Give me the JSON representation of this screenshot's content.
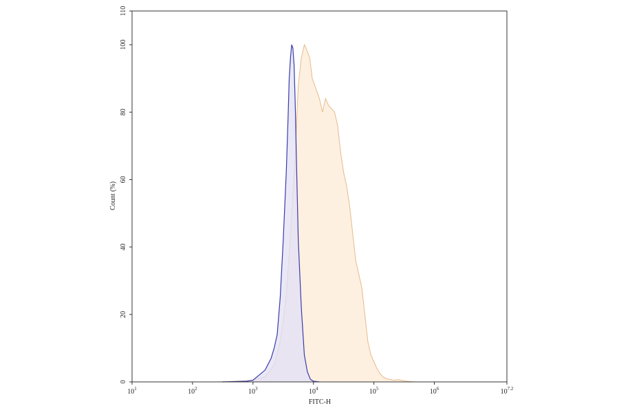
{
  "chart_data": {
    "type": "area",
    "xlabel": "FITC-H",
    "ylabel": "Count (%)",
    "xscale": "log10",
    "xlim_log10": [
      1,
      7.2
    ],
    "ylim": [
      0,
      110
    ],
    "grid": false,
    "x_ticks": [
      {
        "base": "10",
        "exp": "1",
        "value": 1
      },
      {
        "base": "10",
        "exp": "2",
        "value": 2
      },
      {
        "base": "10",
        "exp": "3",
        "value": 3
      },
      {
        "base": "10",
        "exp": "4",
        "value": 4
      },
      {
        "base": "10",
        "exp": "5",
        "value": 5
      },
      {
        "base": "10",
        "exp": "6",
        "value": 6
      },
      {
        "base": "10",
        "exp": "7.2",
        "value": 7.2
      }
    ],
    "y_ticks": [
      {
        "label": "0",
        "value": 0
      },
      {
        "label": "20",
        "value": 20
      },
      {
        "label": "40",
        "value": 40
      },
      {
        "label": "60",
        "value": 60
      },
      {
        "label": "80",
        "value": 80
      },
      {
        "label": "100",
        "value": 100
      },
      {
        "label": "110",
        "value": 110
      }
    ],
    "series": [
      {
        "color": "#e8b98a",
        "fill": "#fdf0e1",
        "x_log10": [
          2.4,
          2.9,
          3.0,
          3.2,
          3.35,
          3.45,
          3.5,
          3.55,
          3.6,
          3.65,
          3.7,
          3.75,
          3.8,
          3.85,
          3.9,
          3.94,
          3.98,
          4.02,
          4.06,
          4.1,
          4.15,
          4.2,
          4.25,
          4.3,
          4.35,
          4.4,
          4.45,
          4.5,
          4.55,
          4.6,
          4.65,
          4.7,
          4.75,
          4.8,
          4.85,
          4.9,
          4.95,
          5.0,
          5.05,
          5.1,
          5.15,
          5.2,
          5.25,
          5.3,
          5.35,
          5.4,
          5.45,
          5.5,
          5.55,
          5.6,
          5.7,
          5.8
        ],
        "y": [
          0,
          0.3,
          0.5,
          1.5,
          5,
          12,
          18,
          26,
          38,
          52,
          68,
          88,
          96,
          100,
          98,
          96,
          90,
          88,
          86,
          84,
          80,
          84,
          82,
          81,
          80,
          76,
          68,
          62,
          58,
          52,
          44,
          36,
          32,
          28,
          20,
          12,
          8,
          6,
          4,
          2.5,
          1.5,
          1.0,
          0.8,
          0.6,
          0.5,
          0.7,
          0.5,
          0.3,
          0.2,
          0.1,
          0,
          0
        ]
      },
      {
        "color": "#3a3aa8",
        "fill": "#e2e0f6",
        "x_log10": [
          2.5,
          2.9,
          3.0,
          3.1,
          3.2,
          3.3,
          3.35,
          3.4,
          3.45,
          3.5,
          3.55,
          3.58,
          3.6,
          3.62,
          3.64,
          3.66,
          3.68,
          3.7,
          3.72,
          3.75,
          3.8,
          3.85,
          3.9,
          3.95,
          4.0,
          4.1
        ],
        "y": [
          0,
          0.2,
          0.5,
          2,
          3.5,
          7,
          10,
          14,
          25,
          42,
          62,
          78,
          90,
          96,
          100,
          99,
          94,
          82,
          65,
          42,
          22,
          8,
          3,
          0.8,
          0.2,
          0
        ]
      }
    ]
  }
}
